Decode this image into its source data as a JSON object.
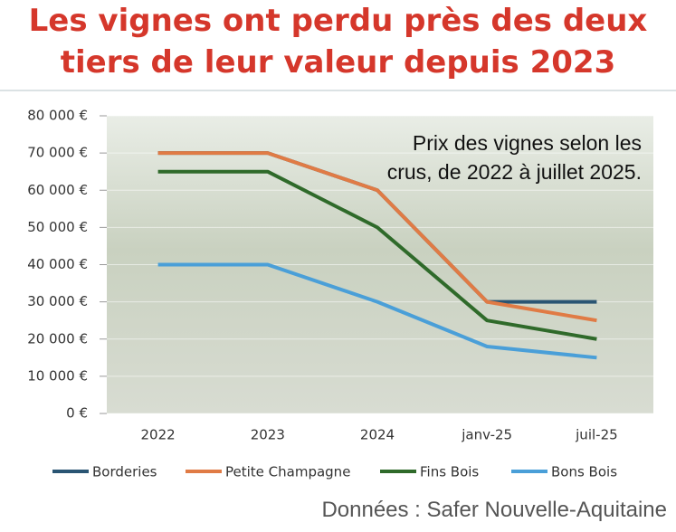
{
  "chart_data": {
    "type": "line",
    "title": "Les vignes ont perdu près des deux tiers de leur valeur depuis 2023",
    "annotation": "Prix des vignes selon les crus, de 2022 à juillet 2025.",
    "source": "Données : Safer Nouvelle-Aquitaine",
    "categories": [
      "2022",
      "2023",
      "2024",
      "janv-25",
      "juil-25"
    ],
    "series": [
      {
        "name": "Borderies",
        "color": "#2a5573",
        "values": [
          70000,
          70000,
          60000,
          30000,
          30000
        ]
      },
      {
        "name": "Petite Champagne",
        "color": "#e07b45",
        "values": [
          70000,
          70000,
          60000,
          30000,
          25000
        ]
      },
      {
        "name": "Fins Bois",
        "color": "#2f6a2a",
        "values": [
          65000,
          65000,
          50000,
          25000,
          20000
        ]
      },
      {
        "name": "Bons Bois",
        "color": "#4a9fd8",
        "values": [
          40000,
          40000,
          30000,
          18000,
          15000
        ]
      }
    ],
    "ylim": [
      0,
      80000
    ],
    "yticks": [
      {
        "value": 0,
        "label": "0 €"
      },
      {
        "value": 10000,
        "label": "10 000 €"
      },
      {
        "value": 20000,
        "label": "20 000 €"
      },
      {
        "value": 30000,
        "label": "30 000 €"
      },
      {
        "value": 40000,
        "label": "40 000 €"
      },
      {
        "value": 50000,
        "label": "50 000 €"
      },
      {
        "value": 60000,
        "label": "60 000 €"
      },
      {
        "value": 70000,
        "label": "70 000 €"
      },
      {
        "value": 80000,
        "label": "80 000 €"
      }
    ],
    "grid": true,
    "legend": "bottom"
  }
}
